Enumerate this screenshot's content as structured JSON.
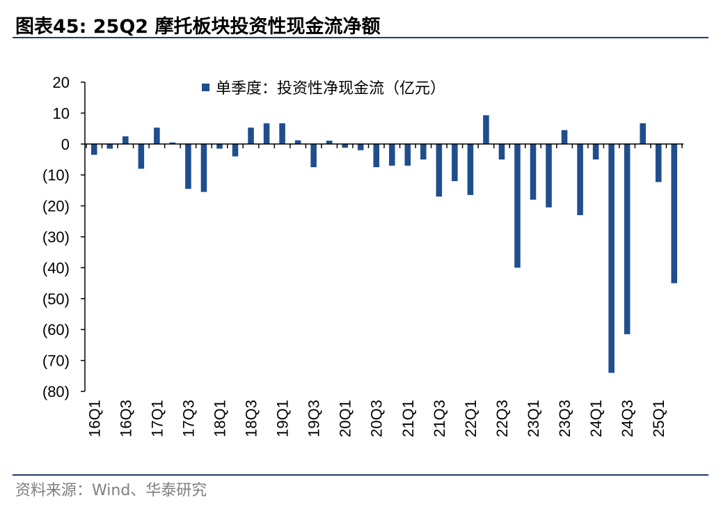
{
  "header": {
    "title": "图表45:  25Q2 摩托板块投资性现金流净额"
  },
  "footer": {
    "source": "资料来源：Wind、华泰研究"
  },
  "colors": {
    "bar": "#1f4e8c",
    "rule": "#1f3c73",
    "source_text": "#7f7f7f"
  },
  "chart_data": {
    "type": "bar",
    "title": "",
    "xlabel": "",
    "ylabel": "",
    "legend": {
      "label": "单季度：投资性净现金流（亿元）",
      "placement": "top"
    },
    "ylim": [
      -80,
      20
    ],
    "yticks": [
      20,
      10,
      0,
      -10,
      -20,
      -30,
      -40,
      -50,
      -60,
      -70,
      -80
    ],
    "ytick_labels": [
      "20",
      "10",
      "0",
      "(10)",
      "(20)",
      "(30)",
      "(40)",
      "(50)",
      "(60)",
      "(70)",
      "(80)"
    ],
    "grid": false,
    "categories": [
      "16Q1",
      "16Q2",
      "16Q3",
      "16Q4",
      "17Q1",
      "17Q2",
      "17Q3",
      "17Q4",
      "18Q1",
      "18Q2",
      "18Q3",
      "18Q4",
      "19Q1",
      "19Q2",
      "19Q3",
      "19Q4",
      "20Q1",
      "20Q2",
      "20Q3",
      "20Q4",
      "21Q1",
      "21Q2",
      "21Q3",
      "21Q4",
      "22Q1",
      "22Q2",
      "22Q3",
      "22Q4",
      "23Q1",
      "23Q2",
      "23Q3",
      "23Q4",
      "24Q1",
      "24Q2",
      "24Q3",
      "24Q4",
      "25Q1",
      "25Q2"
    ],
    "xtick_labels": [
      "16Q1",
      "",
      "16Q3",
      "",
      "17Q1",
      "",
      "17Q3",
      "",
      "18Q1",
      "",
      "18Q3",
      "",
      "19Q1",
      "",
      "19Q3",
      "",
      "20Q1",
      "",
      "20Q3",
      "",
      "21Q1",
      "",
      "21Q3",
      "",
      "22Q1",
      "",
      "22Q3",
      "",
      "23Q1",
      "",
      "23Q3",
      "",
      "24Q1",
      "",
      "24Q3",
      "",
      "25Q1",
      ""
    ],
    "series": [
      {
        "name": "单季度：投资性净现金流（亿元）",
        "values": [
          -3.5,
          -1.5,
          2.5,
          -8,
          5.3,
          0.5,
          -14.5,
          -15.5,
          -1.5,
          -4,
          5.3,
          6.7,
          6.7,
          1.2,
          -7.5,
          1.1,
          -1.2,
          -2,
          -7.5,
          -7,
          -7,
          -5,
          -17,
          -12,
          -16.5,
          9.3,
          -5,
          -40,
          -18,
          -20.5,
          4.5,
          -23,
          -5,
          -74,
          -61.5,
          6.7,
          -12.3,
          -45
        ]
      }
    ]
  }
}
